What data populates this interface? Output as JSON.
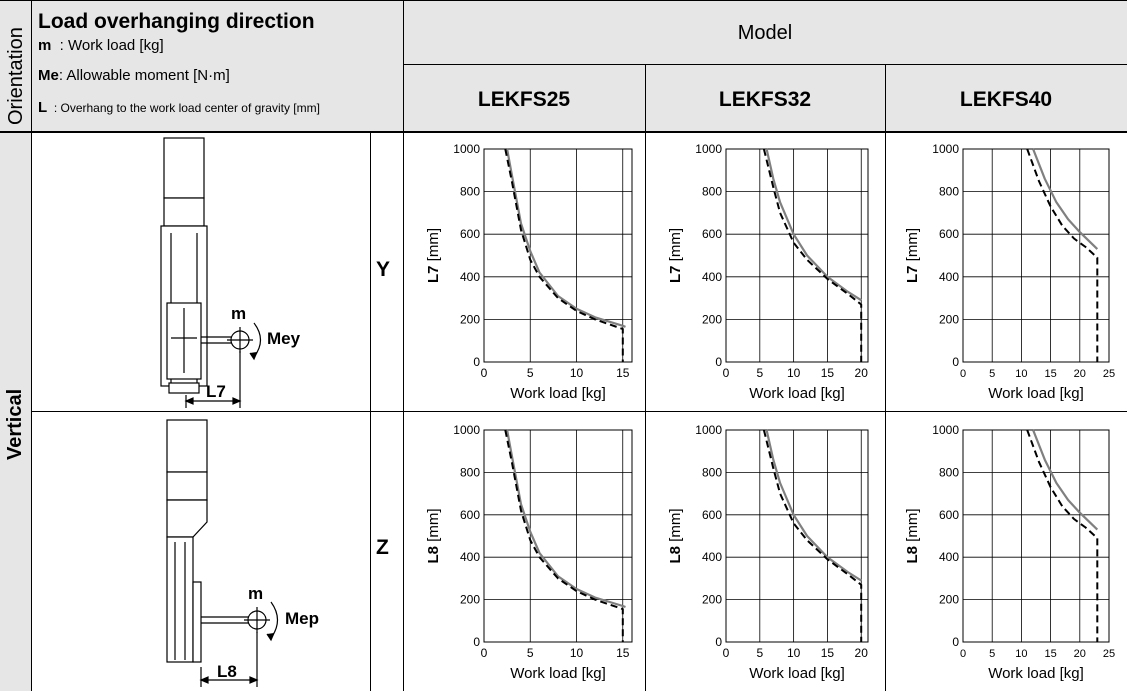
{
  "header": {
    "orientation": "Orientation",
    "title": "Load overhanging direction",
    "line_m_key": "m",
    "line_m_text": "  : Work load [kg]",
    "line_me_key": "Me",
    "line_me_text": ": Allowable moment [N·m]",
    "line_l_key": "L",
    "line_l_text": "  : Overhang to the work load center of gravity [mm]",
    "model": "Model",
    "models": [
      "LEKFS25",
      "LEKFS32",
      "LEKFS40"
    ]
  },
  "orientation_label": "Vertical",
  "rows": [
    {
      "axis": "Y",
      "mass_label": "m",
      "moment_label": "Mey",
      "overhang_label": "L7",
      "ylabel": "L7 [mm]"
    },
    {
      "axis": "Z",
      "mass_label": "m",
      "moment_label": "Mep",
      "overhang_label": "L8",
      "ylabel": "L8 [mm]"
    }
  ],
  "chart_data": [
    {
      "type": "line",
      "model": "LEKFS25",
      "row": "Y",
      "xlabel": "Work load [kg]",
      "ylabel": "L7 [mm]",
      "xlim": [
        0,
        16
      ],
      "ylim": [
        0,
        1000
      ],
      "xticks": [
        0,
        5,
        10,
        15
      ],
      "yticks": [
        0,
        200,
        400,
        600,
        800,
        1000
      ],
      "grid": true,
      "series": [
        {
          "style": "solid",
          "color": "#808080",
          "x": [
            2.5,
            3,
            4,
            5,
            6,
            8,
            10,
            12,
            15,
            15.3
          ],
          "y": [
            1000,
            880,
            650,
            520,
            420,
            310,
            250,
            210,
            170,
            165
          ]
        },
        {
          "style": "dashed",
          "color": "#000000",
          "x": [
            2.3,
            3,
            4,
            5,
            6,
            8,
            10,
            12,
            15,
            15,
            15
          ],
          "y": [
            1000,
            850,
            620,
            480,
            400,
            300,
            240,
            200,
            155,
            120,
            0
          ]
        }
      ]
    },
    {
      "type": "line",
      "model": "LEKFS32",
      "row": "Y",
      "xlabel": "Work load [kg]",
      "ylabel": "L7 [mm]",
      "xlim": [
        0,
        21
      ],
      "ylim": [
        0,
        1000
      ],
      "xticks": [
        0,
        5,
        10,
        15,
        20
      ],
      "yticks": [
        0,
        200,
        400,
        600,
        800,
        1000
      ],
      "grid": true,
      "series": [
        {
          "style": "solid",
          "color": "#808080",
          "x": [
            6,
            7,
            8,
            10,
            12,
            15,
            18,
            20
          ],
          "y": [
            1000,
            860,
            750,
            600,
            500,
            400,
            330,
            290
          ]
        },
        {
          "style": "dashed",
          "color": "#000000",
          "x": [
            5.6,
            7,
            8,
            10,
            12,
            15,
            18,
            20,
            20
          ],
          "y": [
            1000,
            820,
            700,
            560,
            480,
            390,
            320,
            270,
            0
          ]
        }
      ]
    },
    {
      "type": "line",
      "model": "LEKFS40",
      "row": "Y",
      "xlabel": "Work load [kg]",
      "ylabel": "L7 [mm]",
      "xlim": [
        0,
        25
      ],
      "ylim": [
        0,
        1000
      ],
      "xticks": [
        0,
        5,
        10,
        15,
        20,
        25
      ],
      "yticks": [
        0,
        200,
        400,
        600,
        800,
        1000
      ],
      "grid": true,
      "series": [
        {
          "style": "solid",
          "color": "#808080",
          "x": [
            12,
            14,
            16,
            18,
            20,
            23
          ],
          "y": [
            1000,
            860,
            750,
            670,
            610,
            530
          ]
        },
        {
          "style": "dashed",
          "color": "#000000",
          "x": [
            11,
            13,
            15,
            17,
            19,
            21,
            23,
            23
          ],
          "y": [
            1000,
            850,
            730,
            640,
            580,
            540,
            490,
            0
          ]
        }
      ]
    },
    {
      "type": "line",
      "model": "LEKFS25",
      "row": "Z",
      "xlabel": "Work load [kg]",
      "ylabel": "L8 [mm]",
      "xlim": [
        0,
        16
      ],
      "ylim": [
        0,
        1000
      ],
      "xticks": [
        0,
        5,
        10,
        15
      ],
      "yticks": [
        0,
        200,
        400,
        600,
        800,
        1000
      ],
      "grid": true,
      "series": [
        {
          "style": "solid",
          "color": "#808080",
          "x": [
            2.5,
            3,
            4,
            5,
            6,
            8,
            10,
            12,
            15,
            15.3
          ],
          "y": [
            1000,
            880,
            650,
            520,
            420,
            310,
            250,
            210,
            170,
            165
          ]
        },
        {
          "style": "dashed",
          "color": "#000000",
          "x": [
            2.3,
            3,
            4,
            5,
            6,
            8,
            10,
            12,
            15,
            15,
            15
          ],
          "y": [
            1000,
            850,
            620,
            480,
            400,
            300,
            240,
            200,
            155,
            120,
            0
          ]
        }
      ]
    },
    {
      "type": "line",
      "model": "LEKFS32",
      "row": "Z",
      "xlabel": "Work load [kg]",
      "ylabel": "L8 [mm]",
      "xlim": [
        0,
        21
      ],
      "ylim": [
        0,
        1000
      ],
      "xticks": [
        0,
        5,
        10,
        15,
        20
      ],
      "yticks": [
        0,
        200,
        400,
        600,
        800,
        1000
      ],
      "grid": true,
      "series": [
        {
          "style": "solid",
          "color": "#808080",
          "x": [
            6,
            7,
            8,
            10,
            12,
            15,
            18,
            20
          ],
          "y": [
            1000,
            860,
            750,
            600,
            500,
            400,
            330,
            290
          ]
        },
        {
          "style": "dashed",
          "color": "#000000",
          "x": [
            5.6,
            7,
            8,
            10,
            12,
            15,
            18,
            20,
            20
          ],
          "y": [
            1000,
            820,
            700,
            560,
            480,
            390,
            320,
            270,
            0
          ]
        }
      ]
    },
    {
      "type": "line",
      "model": "LEKFS40",
      "row": "Z",
      "xlabel": "Work load [kg]",
      "ylabel": "L8 [mm]",
      "xlim": [
        0,
        25
      ],
      "ylim": [
        0,
        1000
      ],
      "xticks": [
        0,
        5,
        10,
        15,
        20,
        25
      ],
      "yticks": [
        0,
        200,
        400,
        600,
        800,
        1000
      ],
      "grid": true,
      "series": [
        {
          "style": "solid",
          "color": "#808080",
          "x": [
            12,
            14,
            16,
            18,
            20,
            23
          ],
          "y": [
            1000,
            860,
            750,
            670,
            610,
            530
          ]
        },
        {
          "style": "dashed",
          "color": "#000000",
          "x": [
            11,
            13,
            15,
            17,
            19,
            21,
            23,
            23
          ],
          "y": [
            1000,
            850,
            730,
            640,
            580,
            540,
            490,
            0
          ]
        }
      ]
    }
  ]
}
